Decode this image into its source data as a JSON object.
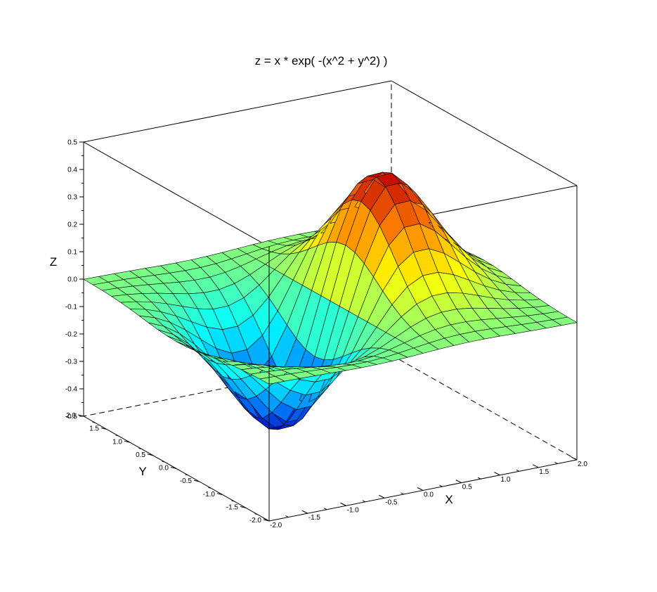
{
  "chart_data": {
    "type": "surface3d",
    "title": "z = x * exp( -(x^2 + y^2) )",
    "xlabel": "X",
    "ylabel": "Y",
    "zlabel": "Z",
    "xlim": [
      -2.0,
      2.0
    ],
    "ylim": [
      -2.0,
      2.0
    ],
    "zlim": [
      -0.5,
      0.5
    ],
    "x_tick_labels": [
      "-2.0",
      "-1.5",
      "-1.0",
      "-0.5",
      "0.0",
      "0.5",
      "1.0",
      "1.5",
      "2.0"
    ],
    "y_tick_labels": [
      "-2.0",
      "-1.5",
      "-1.0",
      "-0.5",
      "0.0",
      "0.5",
      "1.0",
      "1.5",
      "2.0"
    ],
    "z_tick_labels": [
      "-0.5",
      "-0.4",
      "-0.3",
      "-0.2",
      "-0.1",
      "0.0",
      "0.1",
      "0.2",
      "0.3",
      "0.4",
      "0.5"
    ],
    "function": "z = x * exp(-(x^2 + y^2))",
    "grid_points": 21,
    "colormap": [
      "#0000bf",
      "#0080ff",
      "#00ffff",
      "#80ff80",
      "#ffff00",
      "#ff8000",
      "#bf0000"
    ],
    "mesh_color": "#000000"
  }
}
